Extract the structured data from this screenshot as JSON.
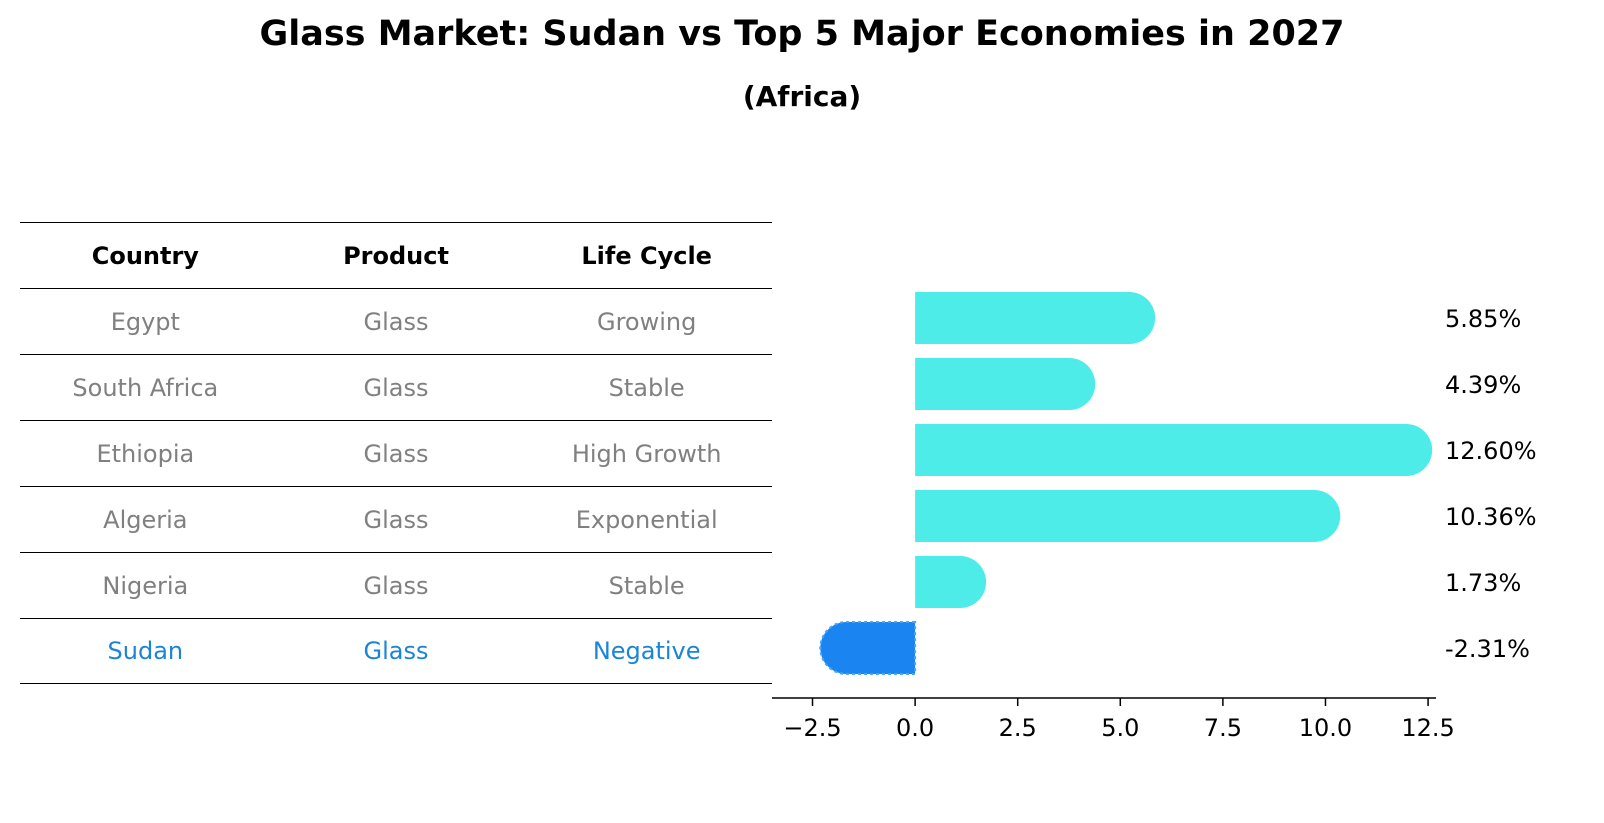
{
  "title": "Glass Market: Sudan vs Top 5 Major Economies in 2027",
  "subtitle": "(Africa)",
  "table": {
    "headers": [
      "Country",
      "Product",
      "Life Cycle"
    ],
    "rows": [
      [
        "Egypt",
        "Glass",
        "Growing"
      ],
      [
        "South Africa",
        "Glass",
        "Stable"
      ],
      [
        "Ethiopia",
        "Glass",
        "High Growth"
      ],
      [
        "Algeria",
        "Glass",
        "Exponential"
      ],
      [
        "Nigeria",
        "Glass",
        "Stable"
      ],
      [
        "Sudan",
        "Glass",
        "Negative"
      ]
    ],
    "highlight_color": "#1a85d6",
    "text_color": "#808080"
  },
  "chart_data": {
    "type": "bar",
    "orientation": "horizontal",
    "categories": [
      "Egypt",
      "South Africa",
      "Ethiopia",
      "Algeria",
      "Nigeria",
      "Sudan"
    ],
    "values": [
      5.85,
      4.39,
      12.6,
      10.36,
      1.73,
      -2.31
    ],
    "value_labels": [
      "5.85%",
      "4.39%",
      "12.60%",
      "10.36%",
      "1.73%",
      "-2.31%"
    ],
    "xlim": [
      -3.0,
      13.4
    ],
    "xticks": [
      -2.5,
      0.0,
      2.5,
      5.0,
      7.5,
      10.0,
      12.5
    ],
    "xtick_labels": [
      "−2.5",
      "0.0",
      "2.5",
      "5.0",
      "7.5",
      "10.0",
      "12.5"
    ],
    "colors": {
      "positive": "#4dece9",
      "highlight": "#1a85f0"
    },
    "highlight_index": 5,
    "rounded_ends": true,
    "grid": false
  }
}
